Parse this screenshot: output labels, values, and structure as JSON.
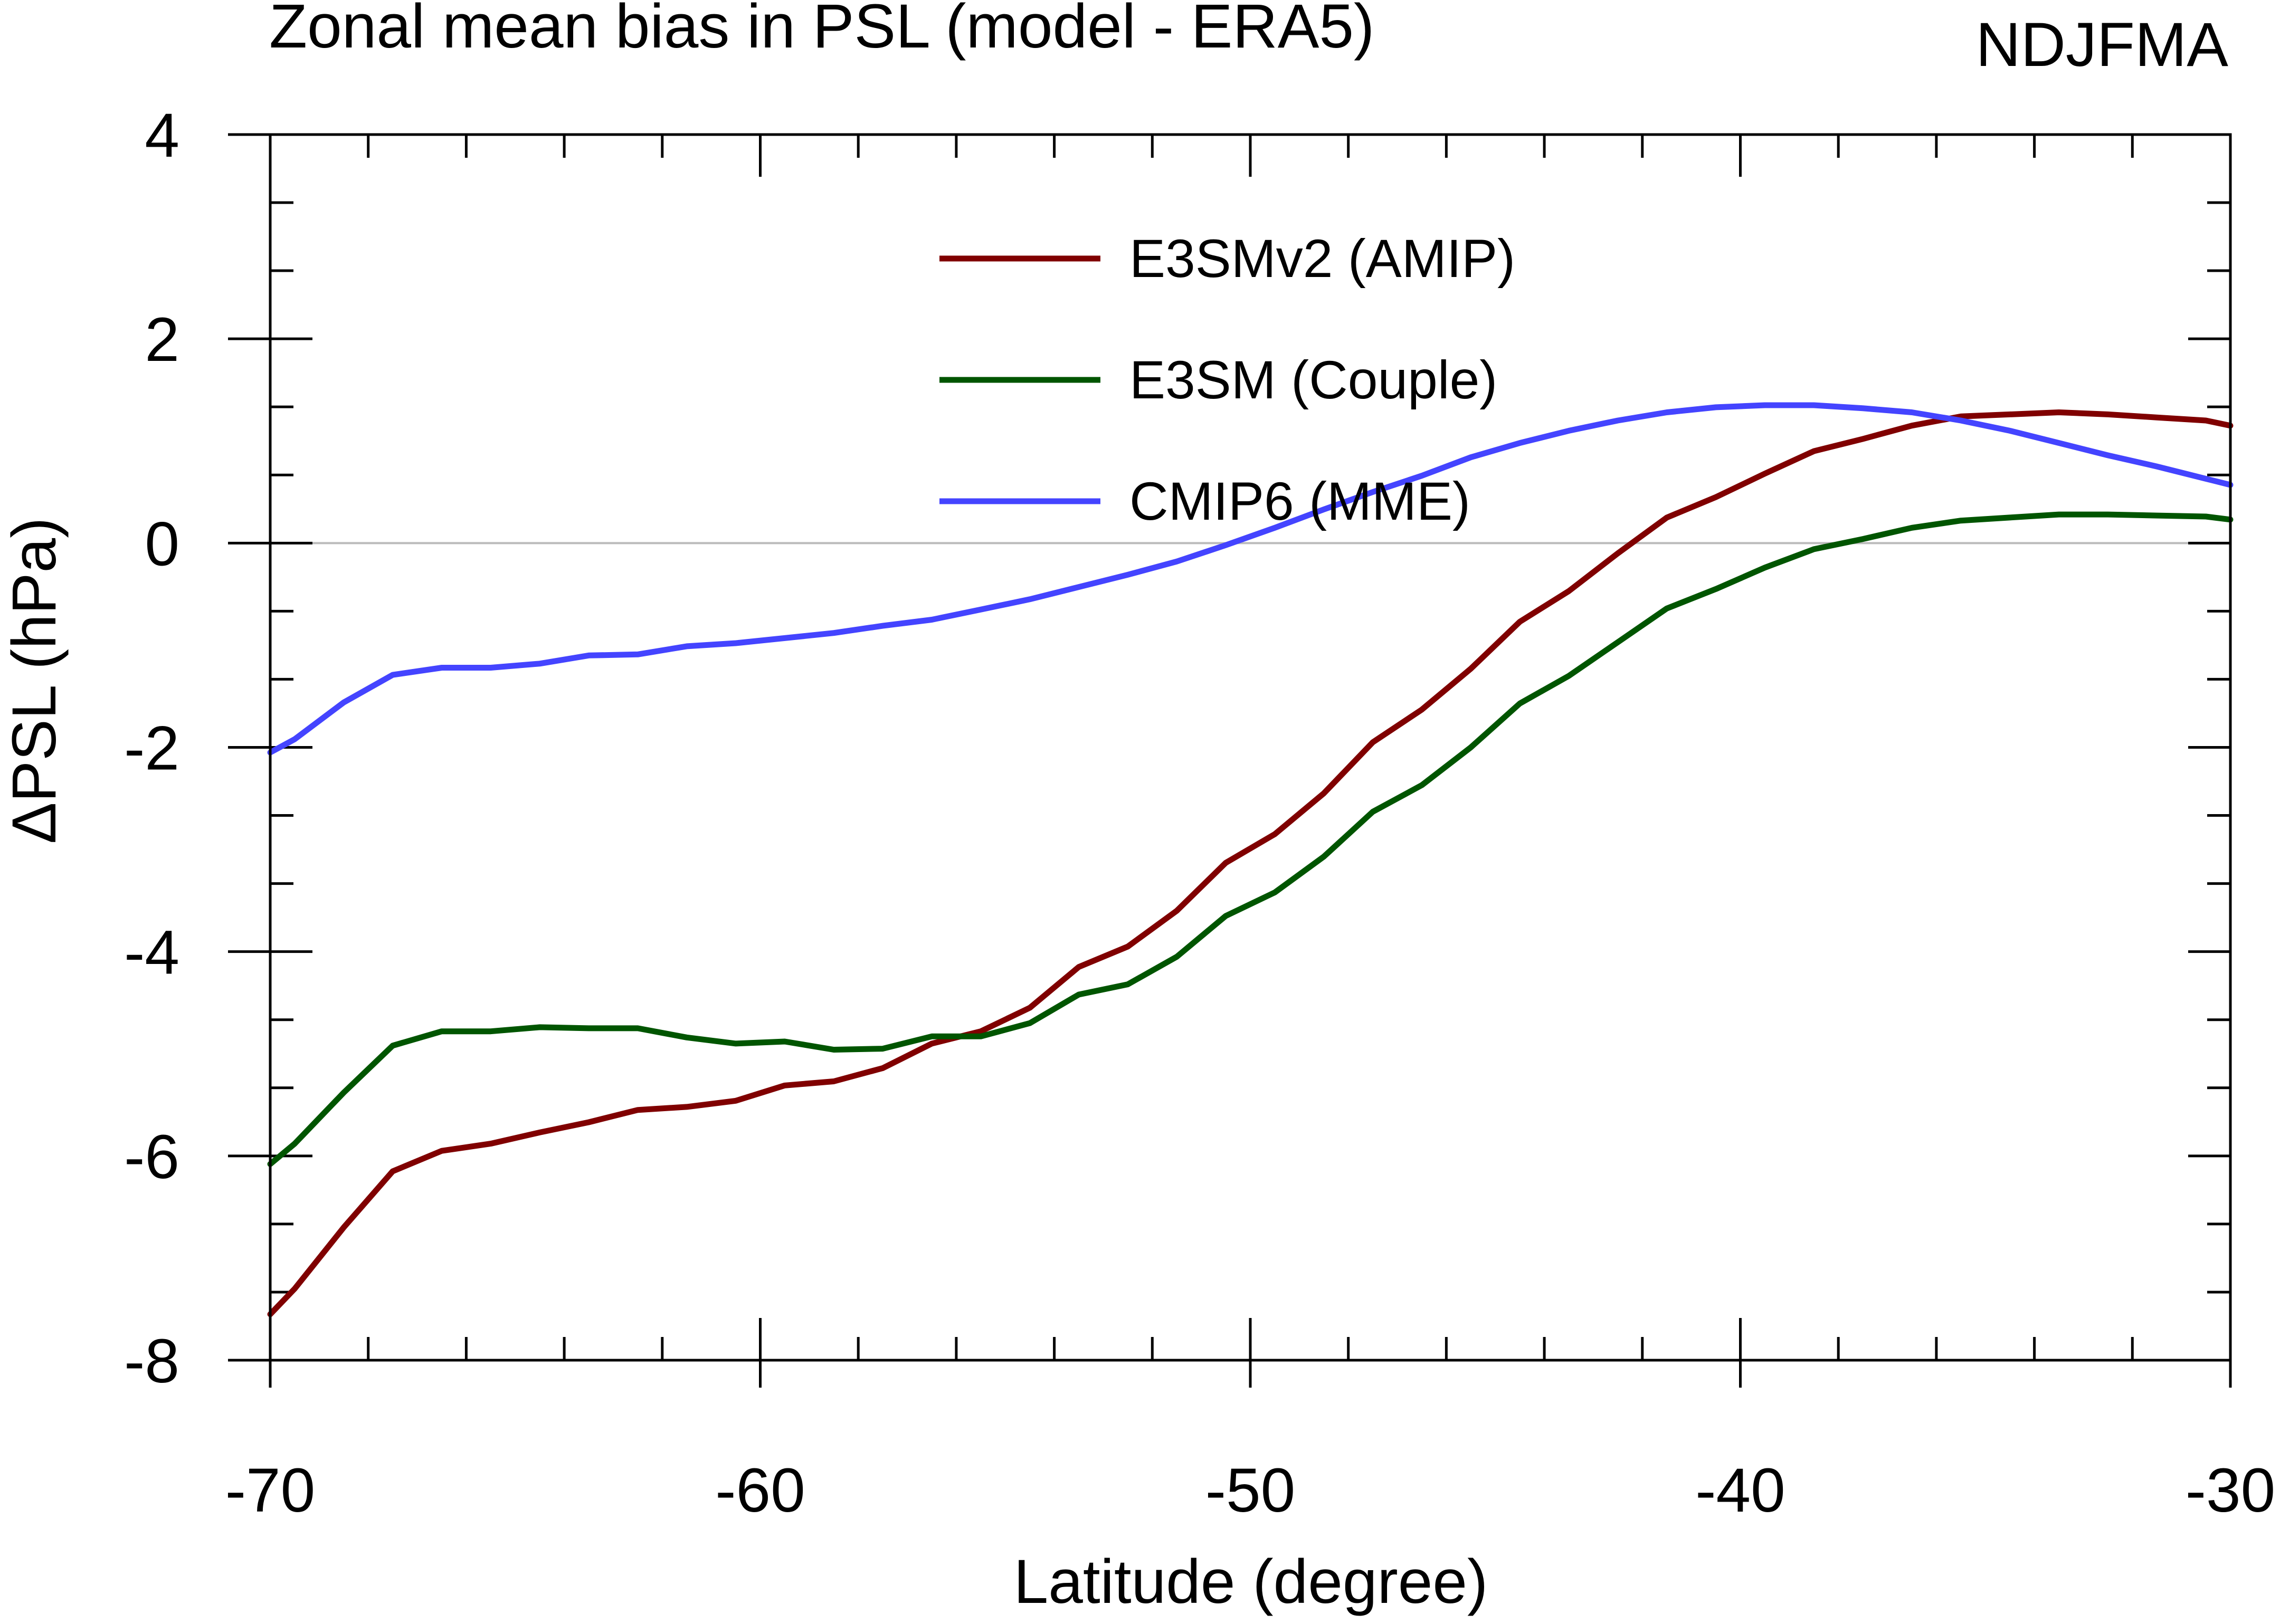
{
  "chart_data": {
    "type": "line",
    "title": "Zonal mean bias in PSL (model - ERA5)",
    "season": "NDJFMA",
    "xlabel": "Latitude (degree)",
    "ylabel": "ΔPSL (hPa)",
    "xlim": [
      -70,
      -30
    ],
    "ylim": [
      -8,
      4
    ],
    "xticks": [
      -70,
      -60,
      -50,
      -40,
      -30
    ],
    "xtick_labels": [
      "-70",
      "-60",
      "-50",
      "-40",
      "-30"
    ],
    "yticks": [
      -8,
      -6,
      -4,
      -2,
      0,
      2,
      4
    ],
    "ytick_labels": [
      "-8",
      "-6",
      "-4",
      "-2",
      "0",
      "2",
      "4"
    ],
    "x_minor_step": 2,
    "y_minor_step": 0.6667,
    "zero_line": true,
    "legend_position": "top-center",
    "x": [
      -70,
      -69.5,
      -68.5,
      -67.5,
      -66.5,
      -65.5,
      -64.5,
      -63.5,
      -62.5,
      -61.5,
      -60.5,
      -59.5,
      -58.5,
      -57.5,
      -56.5,
      -55.5,
      -54.5,
      -53.5,
      -52.5,
      -51.5,
      -50.5,
      -49.5,
      -48.5,
      -47.5,
      -46.5,
      -45.5,
      -44.5,
      -43.5,
      -42.5,
      -41.5,
      -40.5,
      -39.5,
      -38.5,
      -37.5,
      -36.5,
      -35.5,
      -34.5,
      -33.5,
      -32.5,
      -31.5,
      -30.5,
      -30
    ],
    "series": [
      {
        "name": "E3SMv2 (AMIP)",
        "color": "#800000",
        "values": [
          -7.55,
          -7.3,
          -6.7,
          -6.15,
          -5.95,
          -5.88,
          -5.77,
          -5.67,
          -5.55,
          -5.52,
          -5.46,
          -5.31,
          -5.27,
          -5.14,
          -4.9,
          -4.78,
          -4.55,
          -4.15,
          -3.95,
          -3.6,
          -3.13,
          -2.85,
          -2.45,
          -1.95,
          -1.63,
          -1.23,
          -0.77,
          -0.47,
          -0.1,
          0.25,
          0.45,
          0.68,
          0.9,
          1.02,
          1.15,
          1.24,
          1.26,
          1.28,
          1.26,
          1.23,
          1.2,
          1.15
        ]
      },
      {
        "name": "E3SM (Couple)",
        "color": "#005500",
        "values": [
          -6.08,
          -5.88,
          -5.38,
          -4.92,
          -4.78,
          -4.78,
          -4.74,
          -4.75,
          -4.75,
          -4.84,
          -4.9,
          -4.88,
          -4.96,
          -4.95,
          -4.83,
          -4.83,
          -4.7,
          -4.42,
          -4.32,
          -4.05,
          -3.65,
          -3.42,
          -3.07,
          -2.63,
          -2.37,
          -2.0,
          -1.57,
          -1.3,
          -0.97,
          -0.64,
          -0.45,
          -0.24,
          -0.06,
          0.04,
          0.15,
          0.22,
          0.25,
          0.28,
          0.28,
          0.27,
          0.26,
          0.23
        ]
      },
      {
        "name": "CMIP6 (MME)",
        "color": "#4444ff",
        "values": [
          -2.05,
          -1.92,
          -1.56,
          -1.29,
          -1.22,
          -1.22,
          -1.18,
          -1.1,
          -1.09,
          -1.01,
          -0.98,
          -0.93,
          -0.88,
          -0.81,
          -0.75,
          -0.65,
          -0.55,
          -0.43,
          -0.31,
          -0.18,
          -0.02,
          0.15,
          0.33,
          0.5,
          0.66,
          0.84,
          0.98,
          1.1,
          1.2,
          1.28,
          1.33,
          1.35,
          1.35,
          1.32,
          1.28,
          1.2,
          1.1,
          0.98,
          0.86,
          0.75,
          0.63,
          0.57
        ]
      }
    ]
  }
}
